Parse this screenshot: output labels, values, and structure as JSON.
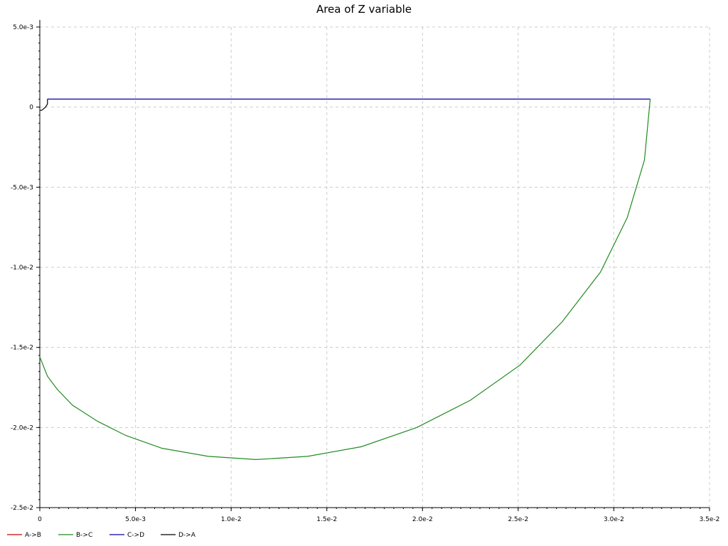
{
  "chart_data": {
    "type": "line",
    "title": "Area of Z variable",
    "xlabel": "",
    "ylabel": "",
    "xlim": [
      0,
      0.035
    ],
    "ylim": [
      -0.025,
      0.005
    ],
    "x_ticks": [
      {
        "value": 0,
        "label": "0"
      },
      {
        "value": 0.005,
        "label": "5.0e-3"
      },
      {
        "value": 0.01,
        "label": "1.0e-2"
      },
      {
        "value": 0.015,
        "label": "1.5e-2"
      },
      {
        "value": 0.02,
        "label": "2.0e-2"
      },
      {
        "value": 0.025,
        "label": "2.5e-2"
      },
      {
        "value": 0.03,
        "label": "3.0e-2"
      },
      {
        "value": 0.035,
        "label": "3.5e-2"
      }
    ],
    "y_ticks": [
      {
        "value": 0.005,
        "label": "5.0e-3"
      },
      {
        "value": 0,
        "label": "0"
      },
      {
        "value": -0.005,
        "label": "-5.0e-3"
      },
      {
        "value": -0.01,
        "label": "-1.0e-2"
      },
      {
        "value": -0.015,
        "label": "-1.5e-2"
      },
      {
        "value": -0.02,
        "label": "-2.0e-2"
      },
      {
        "value": -0.025,
        "label": "-2.5e-2"
      }
    ],
    "grid": true,
    "legend_position": "bottom-left",
    "series": [
      {
        "name": "A->B",
        "color": "#cc0000",
        "points": [
          [
            0,
            0
          ],
          [
            0,
            0
          ]
        ]
      },
      {
        "name": "B->C",
        "color": "#228b22",
        "points": [
          [
            0,
            -0.0156
          ],
          [
            0.0004,
            -0.0168
          ],
          [
            0.0009,
            -0.0176
          ],
          [
            0.0017,
            -0.0186
          ],
          [
            0.003,
            -0.0196
          ],
          [
            0.0045,
            -0.0205
          ],
          [
            0.0064,
            -0.0213
          ],
          [
            0.0088,
            -0.0218
          ],
          [
            0.0113,
            -0.022
          ],
          [
            0.014,
            -0.0218
          ],
          [
            0.0168,
            -0.0212
          ],
          [
            0.0197,
            -0.02
          ],
          [
            0.0225,
            -0.0183
          ],
          [
            0.0251,
            -0.0161
          ],
          [
            0.0273,
            -0.0134
          ],
          [
            0.0293,
            -0.0103
          ],
          [
            0.0307,
            -0.0069
          ],
          [
            0.0316,
            -0.0033
          ],
          [
            0.0319,
            0.0005
          ]
        ]
      },
      {
        "name": "C->D",
        "color": "#0000aa",
        "points": [
          [
            0.0319,
            0.0005
          ],
          [
            0.0004,
            0.0005
          ]
        ]
      },
      {
        "name": "D->A",
        "color": "#000000",
        "points": [
          [
            0.0004,
            0.0005
          ],
          [
            0.0004,
            0.0002
          ],
          [
            0.0003,
            0.0
          ],
          [
            0.0001,
            -0.0002
          ],
          [
            0,
            -0.0002
          ]
        ]
      }
    ]
  }
}
